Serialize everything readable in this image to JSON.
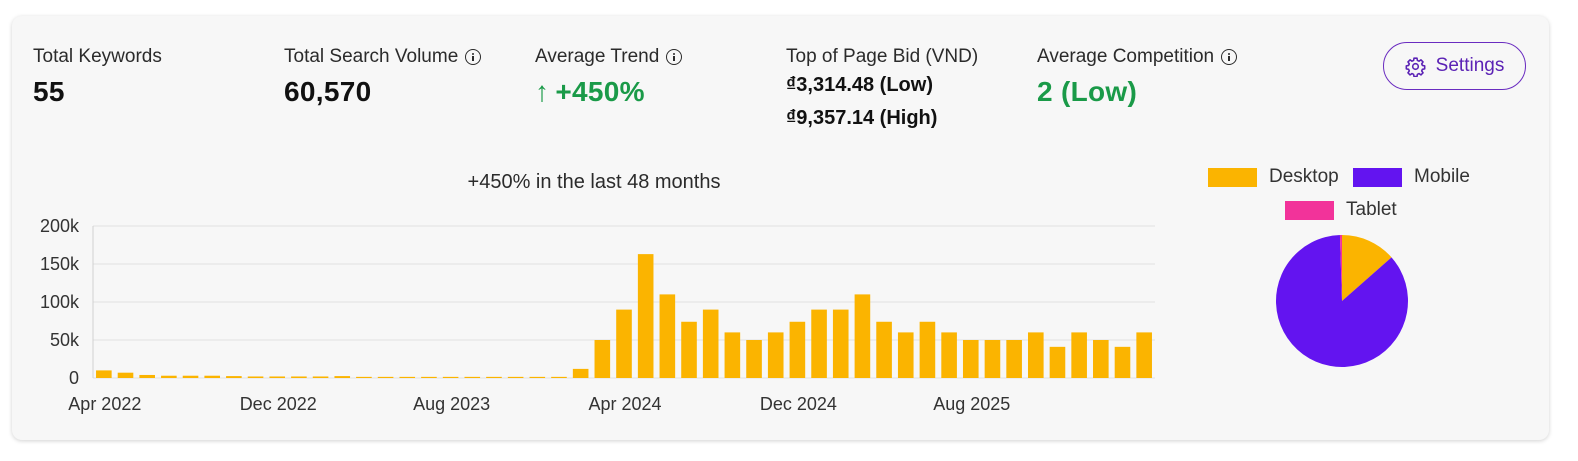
{
  "metrics": {
    "total_keywords": {
      "label": "Total Keywords",
      "value": "55"
    },
    "total_search_volume": {
      "label": "Total Search Volume",
      "value": "60,570"
    },
    "average_trend": {
      "label": "Average Trend",
      "arrow": "↑",
      "value": "+450%"
    },
    "top_of_page_bid": {
      "label": "Top of Page Bid (VND)",
      "low": "₫3,314.48 (Low)",
      "high": "₫9,357.14 (High)"
    },
    "average_competition": {
      "label": "Average Competition",
      "value": "2 (Low)"
    }
  },
  "settings": {
    "label": "Settings",
    "icon": "gear-icon"
  },
  "colors": {
    "accent": "#5b22b5",
    "green": "#1a9a48",
    "desktop": "#fbb400",
    "mobile": "#6314f0",
    "tablet": "#f2339a"
  },
  "chart_data": [
    {
      "type": "bar",
      "title": "+450% in the last 48 months",
      "x_tick_labels": [
        "Apr 2022",
        "Dec 2022",
        "Aug 2023",
        "Apr 2024",
        "Dec 2024",
        "Aug 2025"
      ],
      "y_tick_labels": [
        "0",
        "50k",
        "100k",
        "150k",
        "200k"
      ],
      "ylim": [
        0,
        200000
      ],
      "grid": true,
      "series": [
        {
          "color": "#fbb400",
          "values": [
            10000,
            7000,
            4000,
            3000,
            3000,
            3000,
            2500,
            2000,
            2000,
            2000,
            2000,
            2500,
            1500,
            1500,
            1500,
            1500,
            1500,
            1500,
            1500,
            1500,
            1500,
            1500,
            12000,
            50000,
            90000,
            163000,
            110000,
            74000,
            90000,
            60000,
            50000,
            60000,
            74000,
            90000,
            90000,
            110000,
            74000,
            60000,
            74000,
            60000,
            50000,
            50000,
            50000,
            60000,
            41000,
            60000,
            50000,
            41000,
            60000
          ]
        }
      ]
    },
    {
      "type": "pie",
      "legend_position": "top",
      "slices": [
        {
          "name": "Desktop",
          "value": 13.5,
          "color": "#fbb400"
        },
        {
          "name": "Mobile",
          "value": 86.0,
          "color": "#6314f0"
        },
        {
          "name": "Tablet",
          "value": 0.5,
          "color": "#f2339a"
        }
      ]
    }
  ]
}
